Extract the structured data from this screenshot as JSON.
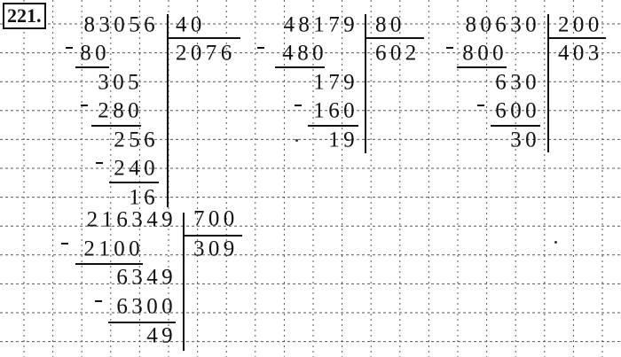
{
  "exercise_number": "221.",
  "problems": [
    {
      "dividend": "83056",
      "divisor": "40",
      "quotient": "2076",
      "steps": [
        "80",
        "305",
        "280",
        "256",
        "240",
        "16"
      ]
    },
    {
      "dividend": "48179",
      "divisor": "80",
      "quotient": "602",
      "steps": [
        "480",
        "179",
        "160",
        "19"
      ]
    },
    {
      "dividend": "80630",
      "divisor": "200",
      "quotient": "403",
      "steps": [
        "800",
        "630",
        "600",
        "30"
      ]
    },
    {
      "dividend": "216349",
      "divisor": "700",
      "quotient": "309",
      "steps": [
        "2100",
        "6349",
        "6300",
        "49"
      ]
    }
  ]
}
